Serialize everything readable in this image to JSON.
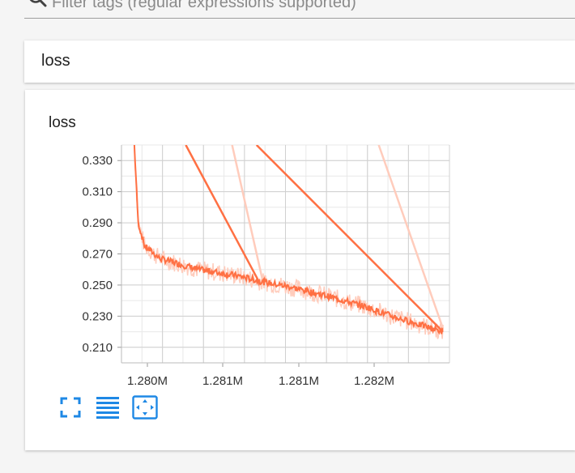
{
  "search": {
    "placeholder": "Filter tags (regular expressions supported)"
  },
  "category": {
    "title": "loss"
  },
  "card": {
    "title": "loss"
  },
  "colors": {
    "accent": "#2196f3",
    "series": "#ff7043",
    "smoothed_faded": "#ffccbc"
  },
  "toolbar": {
    "buttons": [
      "fullscreen-icon",
      "toggle-log-scale-icon",
      "fit-domain-icon"
    ]
  },
  "chart_data": {
    "type": "line",
    "title": "loss",
    "xlabel": "",
    "ylabel": "",
    "x_ticks": [
      "1.280M",
      "1.281M",
      "1.281M",
      "1.282M"
    ],
    "y_ticks": [
      "0.330",
      "0.310",
      "0.290",
      "0.270",
      "0.250",
      "0.230",
      "0.210"
    ],
    "xlim": [
      1279900,
      1282450
    ],
    "ylim": [
      0.2,
      0.34
    ],
    "grid": true,
    "series": [
      {
        "x": [
          1280000,
          1280030,
          1280080,
          1280200,
          1280500,
          1280800,
          1281000,
          1281200,
          1281500,
          1281800,
          1282000,
          1282200,
          1282400
        ],
        "y": [
          0.34,
          0.29,
          0.275,
          0.267,
          0.26,
          0.256,
          0.252,
          0.249,
          0.243,
          0.236,
          0.23,
          0.225,
          0.22
        ]
      },
      {
        "x": [
          1280400,
          1280970
        ],
        "y": [
          0.34,
          0.252
        ]
      },
      {
        "x": [
          1280950,
          1282400
        ],
        "y": [
          0.34,
          0.22
        ]
      }
    ],
    "faded_series": [
      {
        "x": [
          1280760,
          1281000
        ],
        "y": [
          0.34,
          0.252
        ]
      },
      {
        "x": [
          1281900,
          1282400
        ],
        "y": [
          0.34,
          0.222
        ]
      }
    ]
  }
}
